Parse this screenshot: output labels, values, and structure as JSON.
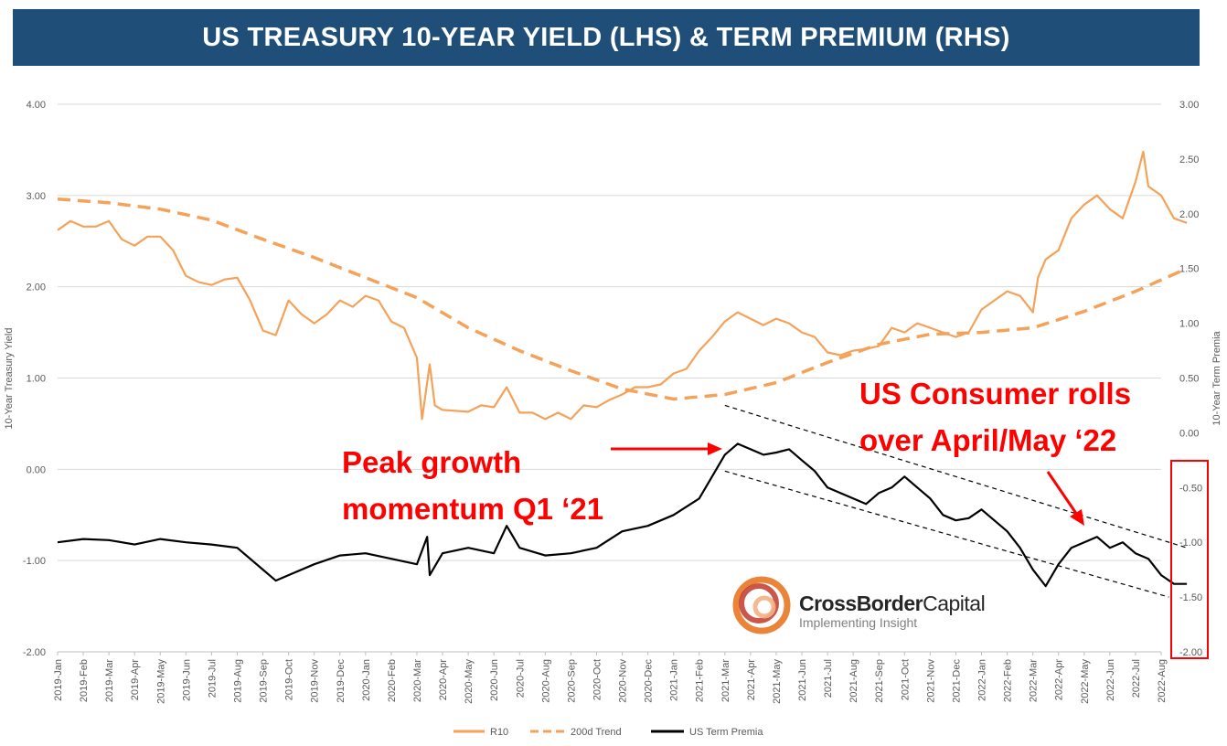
{
  "chart_data": {
    "type": "line",
    "title": "US TREASURY 10-YEAR YIELD (LHS) & TERM PREMIUM (RHS)",
    "ylabel_left": "10-Year Treasury Yield",
    "ylabel_right": "10-Year Term Premia",
    "ylim_left": [
      -2,
      4
    ],
    "ylim_right": [
      -2,
      3
    ],
    "left_ticks": [
      "-2.00",
      "-1.00",
      "0.00",
      "1.00",
      "2.00",
      "3.00",
      "4.00"
    ],
    "right_ticks": [
      "-2.00",
      "-1.50",
      "-1.00",
      "-0.50",
      "0.00",
      "0.50",
      "1.00",
      "1.50",
      "2.00",
      "2.50",
      "3.00"
    ],
    "gridlines": "horizontal",
    "legend_position": "bottom",
    "x": [
      "2019-Jan",
      "2019-Feb",
      "2019-Mar",
      "2019-Apr",
      "2019-May",
      "2019-Jun",
      "2019-Jul",
      "2019-Aug",
      "2019-Sep",
      "2019-Oct",
      "2019-Nov",
      "2019-Dec",
      "2020-Jan",
      "2020-Feb",
      "2020-Mar",
      "2020-Apr",
      "2020-May",
      "2020-Jun",
      "2020-Jul",
      "2020-Aug",
      "2020-Sep",
      "2020-Oct",
      "2020-Nov",
      "2020-Dec",
      "2021-Jan",
      "2021-Feb",
      "2021-Mar",
      "2021-Apr",
      "2021-May",
      "2021-Jun",
      "2021-Jul",
      "2021-Aug",
      "2021-Sep",
      "2021-Oct",
      "2021-Nov",
      "2021-Dec",
      "2022-Jan",
      "2022-Feb",
      "2022-Mar",
      "2022-Apr",
      "2022-May",
      "2022-Jun",
      "2022-Jul",
      "2022-Aug"
    ],
    "series": [
      {
        "name": "R10",
        "axis": "left",
        "style": "solid",
        "color": "#f4a259",
        "points": [
          [
            0,
            2.62
          ],
          [
            0.15,
            2.65
          ],
          [
            0.5,
            2.72
          ],
          [
            1,
            2.66
          ],
          [
            1.5,
            2.66
          ],
          [
            2,
            2.72
          ],
          [
            2.5,
            2.52
          ],
          [
            3,
            2.45
          ],
          [
            3.5,
            2.55
          ],
          [
            4,
            2.55
          ],
          [
            4.5,
            2.4
          ],
          [
            5,
            2.12
          ],
          [
            5.5,
            2.05
          ],
          [
            6,
            2.02
          ],
          [
            6.5,
            2.08
          ],
          [
            7,
            2.1
          ],
          [
            7.5,
            1.85
          ],
          [
            8,
            1.52
          ],
          [
            8.5,
            1.47
          ],
          [
            9,
            1.85
          ],
          [
            9.5,
            1.7
          ],
          [
            10,
            1.6
          ],
          [
            10.5,
            1.7
          ],
          [
            11,
            1.85
          ],
          [
            11.5,
            1.78
          ],
          [
            12,
            1.9
          ],
          [
            12.5,
            1.85
          ],
          [
            13,
            1.62
          ],
          [
            13.5,
            1.55
          ],
          [
            14,
            1.22
          ],
          [
            14.2,
            0.55
          ],
          [
            14.4,
            0.95
          ],
          [
            14.5,
            1.15
          ],
          [
            14.7,
            0.7
          ],
          [
            15,
            0.65
          ],
          [
            15.5,
            0.64
          ],
          [
            16,
            0.63
          ],
          [
            16.5,
            0.7
          ],
          [
            17,
            0.68
          ],
          [
            17.5,
            0.9
          ],
          [
            18,
            0.62
          ],
          [
            18.5,
            0.62
          ],
          [
            19,
            0.55
          ],
          [
            19.5,
            0.62
          ],
          [
            20,
            0.55
          ],
          [
            20.5,
            0.7
          ],
          [
            21,
            0.68
          ],
          [
            21.5,
            0.76
          ],
          [
            22,
            0.82
          ],
          [
            22.5,
            0.9
          ],
          [
            23,
            0.9
          ],
          [
            23.5,
            0.93
          ],
          [
            24,
            1.05
          ],
          [
            24.5,
            1.1
          ],
          [
            25,
            1.3
          ],
          [
            25.5,
            1.45
          ],
          [
            26,
            1.62
          ],
          [
            26.5,
            1.72
          ],
          [
            27,
            1.65
          ],
          [
            27.5,
            1.58
          ],
          [
            28,
            1.65
          ],
          [
            28.5,
            1.6
          ],
          [
            29,
            1.5
          ],
          [
            29.5,
            1.45
          ],
          [
            30,
            1.28
          ],
          [
            30.5,
            1.25
          ],
          [
            31,
            1.3
          ],
          [
            31.5,
            1.32
          ],
          [
            32,
            1.35
          ],
          [
            32.5,
            1.55
          ],
          [
            33,
            1.5
          ],
          [
            33.5,
            1.6
          ],
          [
            34,
            1.55
          ],
          [
            34.5,
            1.5
          ],
          [
            35,
            1.45
          ],
          [
            35.5,
            1.5
          ],
          [
            36,
            1.75
          ],
          [
            36.5,
            1.85
          ],
          [
            37,
            1.95
          ],
          [
            37.5,
            1.9
          ],
          [
            38,
            1.72
          ],
          [
            38.2,
            2.1
          ],
          [
            38.5,
            2.3
          ],
          [
            39,
            2.4
          ],
          [
            39.5,
            2.75
          ],
          [
            40,
            2.9
          ],
          [
            40.5,
            3.0
          ],
          [
            41,
            2.85
          ],
          [
            41.5,
            2.75
          ],
          [
            42,
            3.15
          ],
          [
            42.3,
            3.48
          ],
          [
            42.5,
            3.1
          ],
          [
            43,
            3.0
          ],
          [
            43.5,
            2.75
          ],
          [
            44,
            2.7
          ]
        ]
      },
      {
        "name": "200d Trend",
        "axis": "left",
        "style": "dashed",
        "color": "#f4a259",
        "points": [
          [
            0,
            2.96
          ],
          [
            2,
            2.92
          ],
          [
            4,
            2.85
          ],
          [
            6,
            2.73
          ],
          [
            8,
            2.52
          ],
          [
            10,
            2.32
          ],
          [
            12,
            2.1
          ],
          [
            14,
            1.88
          ],
          [
            16,
            1.55
          ],
          [
            18,
            1.3
          ],
          [
            20,
            1.08
          ],
          [
            22,
            0.88
          ],
          [
            24,
            0.77
          ],
          [
            26,
            0.82
          ],
          [
            28,
            0.95
          ],
          [
            30,
            1.17
          ],
          [
            32,
            1.37
          ],
          [
            34,
            1.48
          ],
          [
            36,
            1.5
          ],
          [
            38,
            1.55
          ],
          [
            40,
            1.73
          ],
          [
            42,
            1.95
          ],
          [
            44,
            2.2
          ]
        ]
      },
      {
        "name": "US Term Premia",
        "axis": "right",
        "style": "solid",
        "color": "#000000",
        "points": [
          [
            0,
            -1.0
          ],
          [
            1,
            -0.97
          ],
          [
            2,
            -0.98
          ],
          [
            3,
            -1.02
          ],
          [
            4,
            -0.97
          ],
          [
            5,
            -1.0
          ],
          [
            6,
            -1.02
          ],
          [
            7,
            -1.05
          ],
          [
            8,
            -1.25
          ],
          [
            8.5,
            -1.35
          ],
          [
            9,
            -1.3
          ],
          [
            10,
            -1.2
          ],
          [
            11,
            -1.12
          ],
          [
            12,
            -1.1
          ],
          [
            13,
            -1.15
          ],
          [
            14,
            -1.2
          ],
          [
            14.4,
            -0.95
          ],
          [
            14.5,
            -1.3
          ],
          [
            15,
            -1.1
          ],
          [
            16,
            -1.05
          ],
          [
            17,
            -1.1
          ],
          [
            17.5,
            -0.85
          ],
          [
            18,
            -1.05
          ],
          [
            19,
            -1.12
          ],
          [
            20,
            -1.1
          ],
          [
            21,
            -1.05
          ],
          [
            22,
            -0.9
          ],
          [
            23,
            -0.85
          ],
          [
            24,
            -0.75
          ],
          [
            25,
            -0.6
          ],
          [
            25.5,
            -0.4
          ],
          [
            26,
            -0.2
          ],
          [
            26.5,
            -0.1
          ],
          [
            27,
            -0.15
          ],
          [
            27.5,
            -0.2
          ],
          [
            28,
            -0.18
          ],
          [
            28.5,
            -0.15
          ],
          [
            29,
            -0.25
          ],
          [
            29.5,
            -0.35
          ],
          [
            30,
            -0.5
          ],
          [
            30.5,
            -0.55
          ],
          [
            31,
            -0.6
          ],
          [
            31.5,
            -0.65
          ],
          [
            32,
            -0.55
          ],
          [
            32.5,
            -0.5
          ],
          [
            33,
            -0.4
          ],
          [
            33.5,
            -0.5
          ],
          [
            34,
            -0.6
          ],
          [
            34.5,
            -0.75
          ],
          [
            35,
            -0.8
          ],
          [
            35.5,
            -0.78
          ],
          [
            36,
            -0.7
          ],
          [
            36.5,
            -0.8
          ],
          [
            37,
            -0.9
          ],
          [
            37.5,
            -1.05
          ],
          [
            38,
            -1.25
          ],
          [
            38.5,
            -1.4
          ],
          [
            39,
            -1.2
          ],
          [
            39.5,
            -1.05
          ],
          [
            40,
            -1.0
          ],
          [
            40.5,
            -0.95
          ],
          [
            41,
            -1.05
          ],
          [
            41.5,
            -1.0
          ],
          [
            42,
            -1.1
          ],
          [
            42.5,
            -1.15
          ],
          [
            43,
            -1.3
          ],
          [
            43.5,
            -1.38
          ],
          [
            44,
            -1.38
          ]
        ]
      }
    ],
    "trend_channel": {
      "style": "dashed",
      "upper": [
        [
          26,
          0.25
        ],
        [
          44,
          -1.05
        ]
      ],
      "lower": [
        [
          26,
          -0.35
        ],
        [
          43.3,
          -1.5
        ]
      ]
    },
    "annotations": [
      {
        "text_lines": [
          "Peak growth",
          "momentum Q1 ‘21"
        ],
        "color": "#ff0000"
      },
      {
        "text_lines": [
          "US Consumer rolls",
          "over April/May ‘22"
        ],
        "color": "#ff0000"
      }
    ]
  },
  "logo": {
    "brand_part1": "CrossBorder",
    "brand_part2": "Capital",
    "tagline": "Implementing Insight"
  }
}
